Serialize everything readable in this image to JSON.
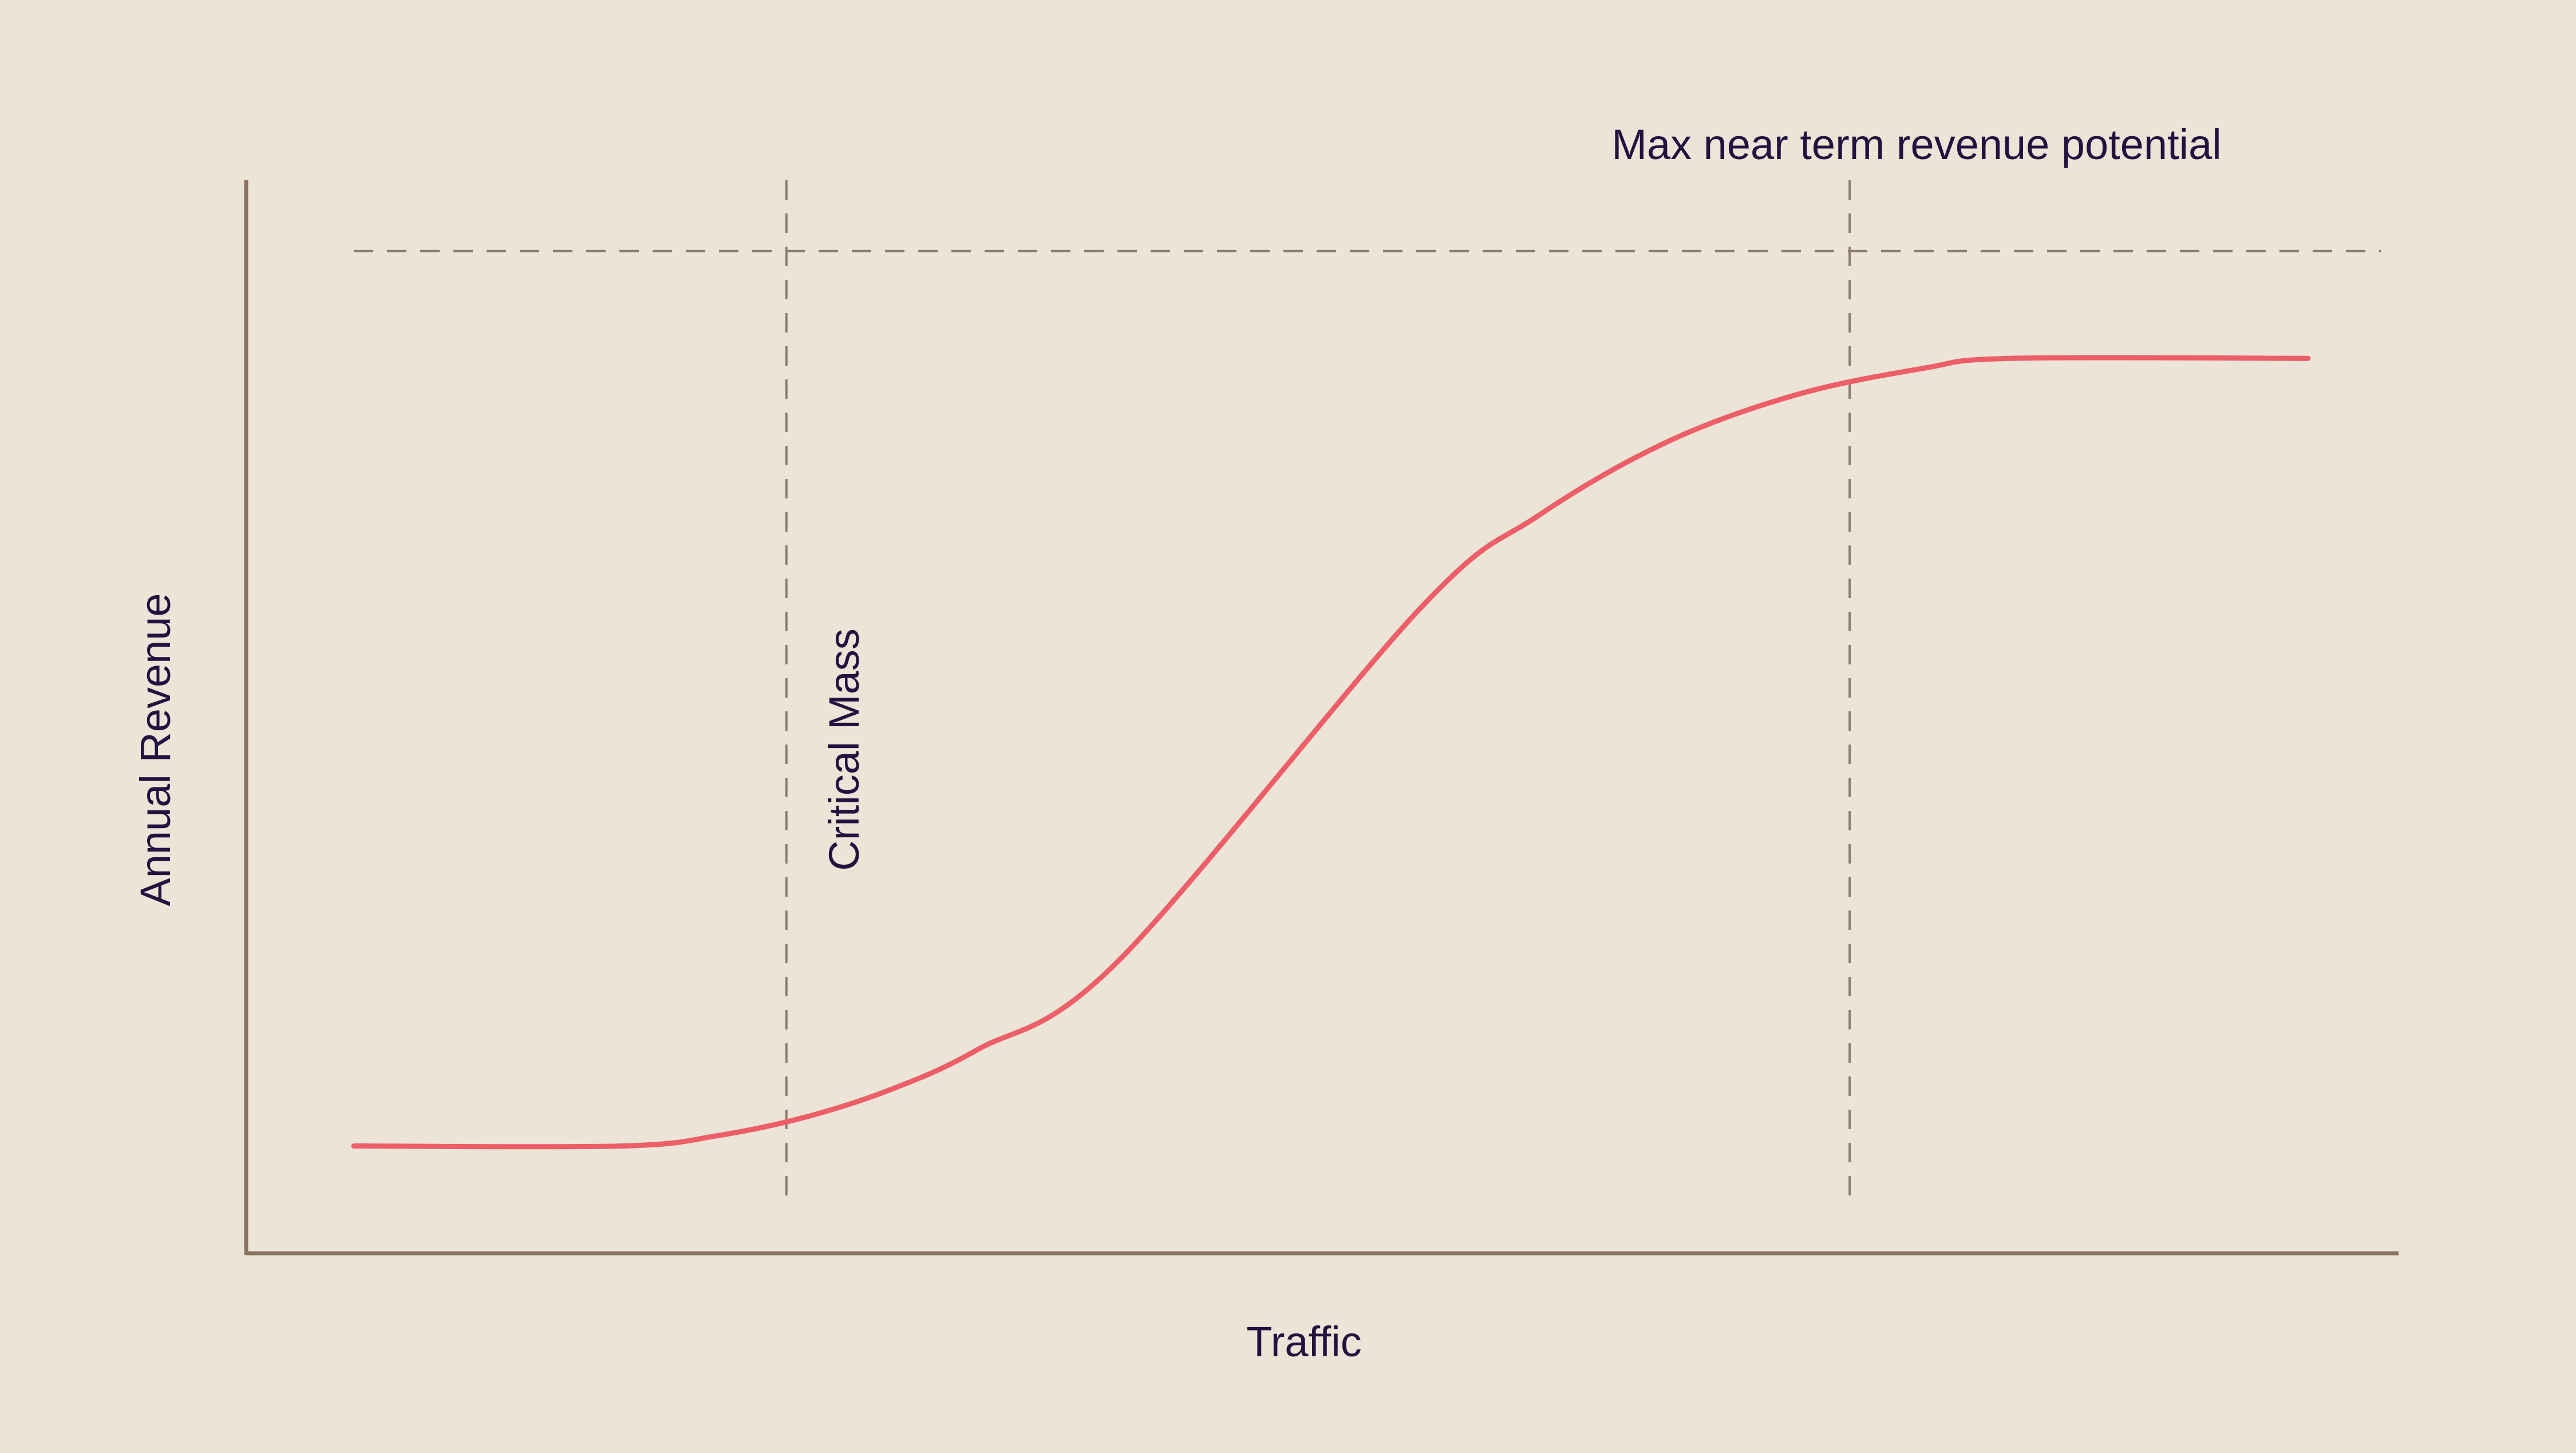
{
  "page": {
    "background": "#ece4d7"
  },
  "colors": {
    "axis": "#8a735f",
    "curve": "#ec5e68",
    "guide": "#8a7d70",
    "text": "#22123f"
  },
  "chart_data": {
    "type": "line",
    "title": "",
    "xlabel": "Traffic",
    "ylabel": "Annual Revenue",
    "ticks": "none",
    "grid": false,
    "legend": "none",
    "xlim": [
      0,
      100
    ],
    "ylim": [
      0,
      100
    ],
    "series": [
      {
        "points": [
          [
            5,
            10
          ],
          [
            17.5,
            10
          ],
          [
            22,
            11
          ],
          [
            26,
            12.7
          ],
          [
            30,
            15.3
          ],
          [
            34,
            19
          ],
          [
            40.5,
            27.2
          ],
          [
            54.5,
            60
          ],
          [
            60,
            68.7
          ],
          [
            66,
            75.6
          ],
          [
            72,
            80
          ],
          [
            78,
            82.5
          ],
          [
            82,
            83.4
          ],
          [
            95.8,
            83.4
          ]
        ]
      }
    ],
    "reference_lines": {
      "horizontal": {
        "y": 93.4,
        "label": "Max near term revenue potential"
      },
      "vertical": [
        {
          "x": 25.1,
          "label": "Critical Mass"
        },
        {
          "x": 74.5,
          "label": ""
        }
      ]
    }
  }
}
